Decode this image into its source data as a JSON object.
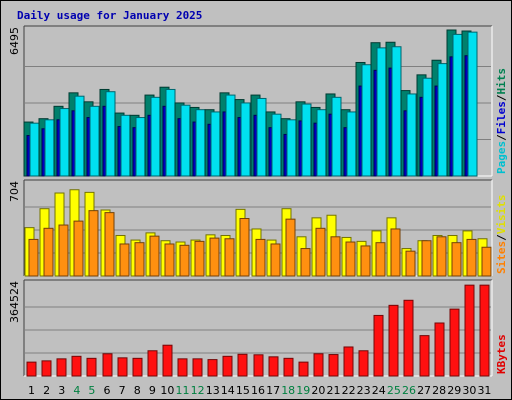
{
  "chart_data": {
    "type": "bar",
    "title": "Daily usage for January 2025",
    "x": [
      "1",
      "2",
      "3",
      "4",
      "5",
      "6",
      "7",
      "8",
      "9",
      "10",
      "11",
      "12",
      "13",
      "14",
      "15",
      "16",
      "17",
      "18",
      "19",
      "20",
      "21",
      "22",
      "23",
      "24",
      "25",
      "26",
      "27",
      "28",
      "29",
      "30",
      "31"
    ],
    "weekend_days": [
      "4",
      "5",
      "11",
      "12",
      "18",
      "19",
      "25",
      "26"
    ],
    "panels": [
      {
        "max_label": "6495",
        "ymax": 6495,
        "legend": [
          "Pages",
          "Files",
          "Hits"
        ],
        "legend_colors": [
          "#00c0d0",
          "#0000d0",
          "#008050"
        ],
        "series": [
          {
            "name": "Hits",
            "color": "#00806c",
            "values": [
              2400,
              2550,
              3100,
              3700,
              3300,
              3850,
              2800,
              2700,
              3600,
              3950,
              3250,
              3050,
              2950,
              3700,
              3400,
              3600,
              2850,
              2550,
              3300,
              3050,
              3650,
              2950,
              5050,
              5930,
              5950,
              3800,
              4500,
              5150,
              6495,
              6450,
              0
            ]
          },
          {
            "name": "Files",
            "color": "#0000c0",
            "values": [
              1800,
              2100,
              2500,
              2900,
              2600,
              3100,
              2200,
              2150,
              2700,
              3100,
              2550,
              2400,
              2300,
              2850,
              2600,
              2700,
              2150,
              1850,
              2450,
              2350,
              2750,
              2150,
              4000,
              4700,
              4800,
              2900,
              3500,
              4000,
              5300,
              5350,
              0
            ]
          },
          {
            "name": "Pages",
            "color": "#00e0f0",
            "values": [
              2350,
              2500,
              3000,
              3550,
              3100,
              3750,
              2700,
              2600,
              3500,
              3850,
              3150,
              2950,
              2850,
              3600,
              3250,
              3450,
              2750,
              2500,
              3200,
              2950,
              3500,
              2850,
              4950,
              5700,
              5750,
              3650,
              4350,
              5000,
              6300,
              6400,
              0
            ]
          }
        ]
      },
      {
        "max_label": "704",
        "ymax": 704,
        "legend": [
          "Sites",
          "Visits"
        ],
        "legend_colors": [
          "#ff8000",
          "#e0e000"
        ],
        "series": [
          {
            "name": "Visits",
            "color": "#ffff00",
            "values": [
              370,
              515,
              635,
              660,
              640,
              505,
              310,
              275,
              330,
              270,
              260,
              275,
              315,
              310,
              510,
              360,
              275,
              515,
              300,
              445,
              465,
              295,
              265,
              345,
              445,
              210,
              270,
              310,
              310,
              345,
              285
            ]
          },
          {
            "name": "Sites",
            "color": "#ff9010",
            "values": [
              280,
              365,
              390,
              420,
              500,
              485,
              245,
              255,
              305,
              245,
              235,
              265,
              290,
              285,
              440,
              280,
              245,
              435,
              210,
              365,
              300,
              260,
              230,
              255,
              360,
              190,
              270,
              300,
              255,
              280,
              220
            ]
          }
        ]
      },
      {
        "max_label": "364524",
        "ymax": 364524,
        "legend": [
          "KBytes"
        ],
        "legend_colors": [
          "#e00000"
        ],
        "series": [
          {
            "name": "KBytes",
            "color": "#ff1010",
            "values": [
              55000,
              60000,
              68000,
              78000,
              70000,
              88000,
              72000,
              70000,
              100000,
              122000,
              68000,
              68000,
              65000,
              78000,
              86000,
              84000,
              76000,
              70000,
              55000,
              88000,
              85000,
              115000,
              100000,
              240000,
              280000,
              300000,
              160000,
              210000,
              265000,
              360000,
              360000
            ]
          }
        ]
      }
    ]
  }
}
